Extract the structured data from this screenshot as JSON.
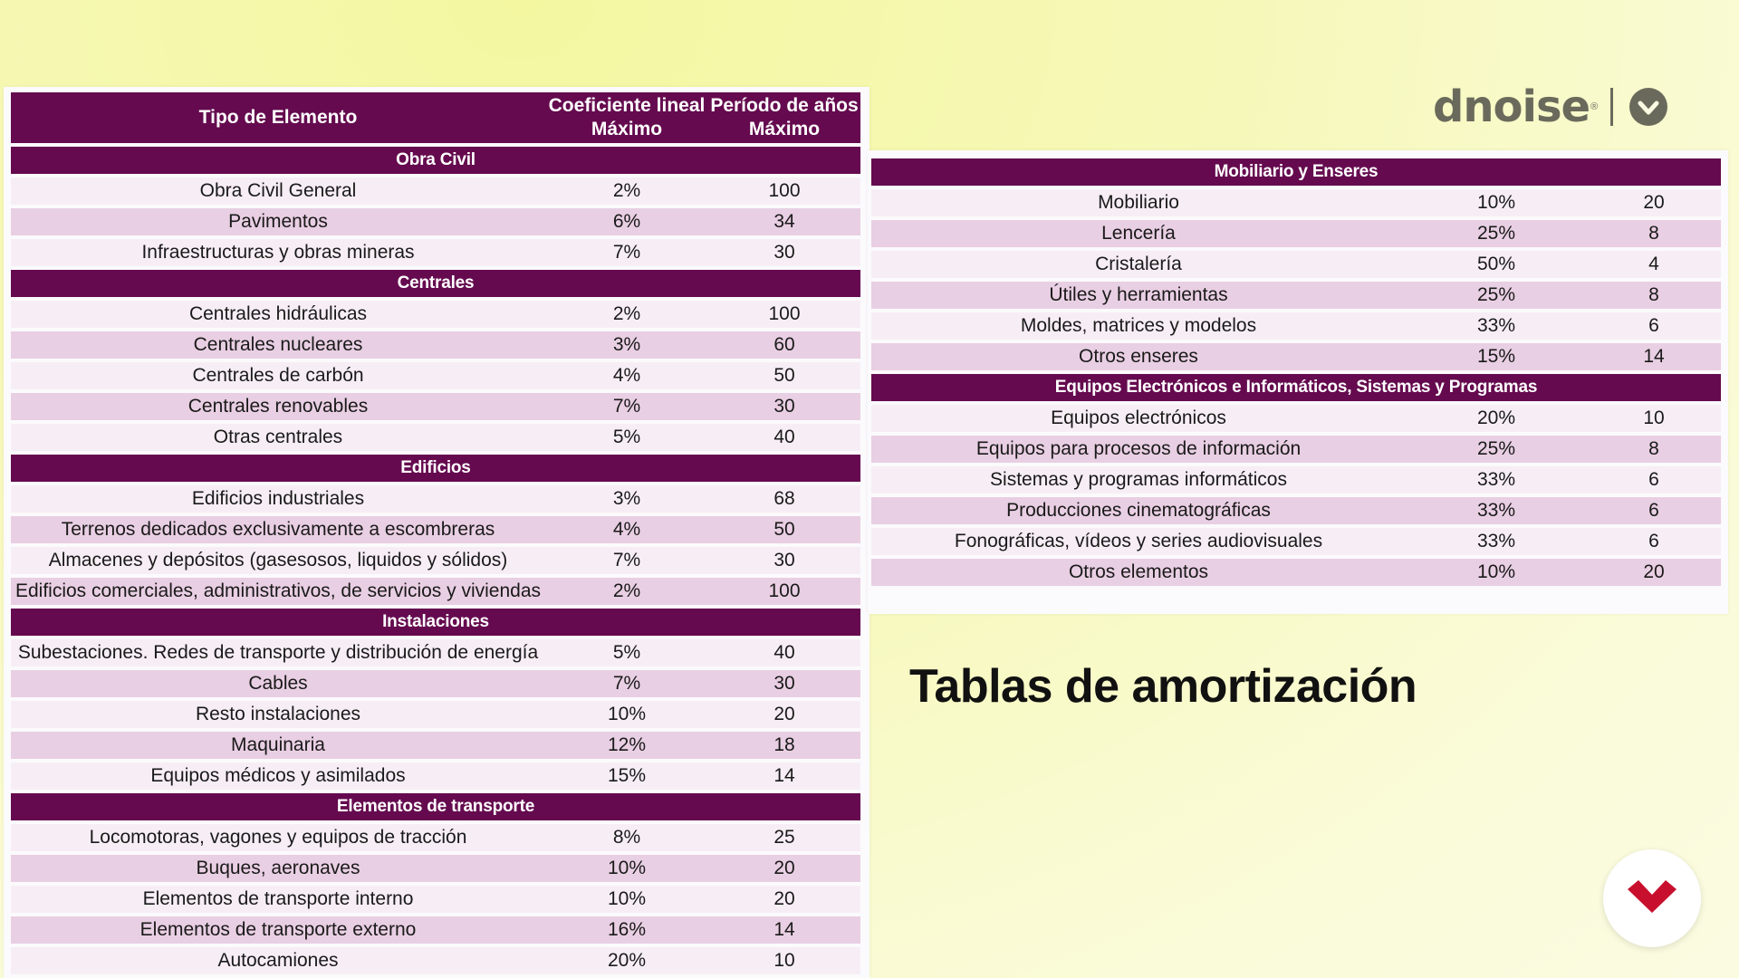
{
  "brand": {
    "name": "dnoise",
    "reg": "®"
  },
  "slide_title": "Tablas de amortización",
  "left_table": {
    "headers": [
      "Tipo de Elemento",
      "Coeficiente lineal Máximo",
      "Período de años Máximo"
    ],
    "sections": [
      {
        "title": "Obra Civil",
        "rows": [
          [
            "Obra Civil General",
            "2%",
            "100"
          ],
          [
            "Pavimentos",
            "6%",
            "34"
          ],
          [
            "Infraestructuras y obras mineras",
            "7%",
            "30"
          ]
        ]
      },
      {
        "title": "Centrales",
        "rows": [
          [
            "Centrales hidráulicas",
            "2%",
            "100"
          ],
          [
            "Centrales nucleares",
            "3%",
            "60"
          ],
          [
            "Centrales de carbón",
            "4%",
            "50"
          ],
          [
            "Centrales renovables",
            "7%",
            "30"
          ],
          [
            "Otras centrales",
            "5%",
            "40"
          ]
        ]
      },
      {
        "title": "Edificios",
        "rows": [
          [
            "Edificios industriales",
            "3%",
            "68"
          ],
          [
            "Terrenos dedicados exclusivamente a escombreras",
            "4%",
            "50"
          ],
          [
            "Almacenes y depósitos (gasesosos, liquidos y sólidos)",
            "7%",
            "30"
          ],
          [
            "Edificios comerciales, administrativos, de servicios y viviendas",
            "2%",
            "100"
          ]
        ]
      },
      {
        "title": "Instalaciones",
        "rows": [
          [
            "Subestaciones. Redes de transporte y distribución de energía",
            "5%",
            "40"
          ],
          [
            "Cables",
            "7%",
            "30"
          ],
          [
            "Resto instalaciones",
            "10%",
            "20"
          ],
          [
            "Maquinaria",
            "12%",
            "18"
          ],
          [
            "Equipos médicos y asimilados",
            "15%",
            "14"
          ]
        ]
      },
      {
        "title": "Elementos de transporte",
        "rows": [
          [
            "Locomotoras, vagones y equipos de tracción",
            "8%",
            "25"
          ],
          [
            "Buques, aeronaves",
            "10%",
            "20"
          ],
          [
            "Elementos de transporte interno",
            "10%",
            "20"
          ],
          [
            "Elementos de transporte externo",
            "16%",
            "14"
          ],
          [
            "Autocamiones",
            "20%",
            "10"
          ]
        ]
      }
    ]
  },
  "right_table": {
    "sections": [
      {
        "title": "Mobiliario y Enseres",
        "rows": [
          [
            "Mobiliario",
            "10%",
            "20"
          ],
          [
            "Lencería",
            "25%",
            "8"
          ],
          [
            "Cristalería",
            "50%",
            "4"
          ],
          [
            "Útiles y herramientas",
            "25%",
            "8"
          ],
          [
            "Moldes, matrices y modelos",
            "33%",
            "6"
          ],
          [
            "Otros enseres",
            "15%",
            "14"
          ]
        ]
      },
      {
        "title": "Equipos Electrónicos e Informáticos, Sistemas y Programas",
        "rows": [
          [
            "Equipos electrónicos",
            "20%",
            "10"
          ],
          [
            "Equipos para procesos de información",
            "25%",
            "8"
          ],
          [
            "Sistemas y programas informáticos",
            "33%",
            "6"
          ],
          [
            "Producciones cinematográficas",
            "33%",
            "6"
          ],
          [
            "Fonográficas, vídeos y series audiovisuales",
            "33%",
            "6"
          ],
          [
            "Otros elementos",
            "10%",
            "20"
          ]
        ]
      }
    ]
  },
  "colors": {
    "header": "#650a4f",
    "row_light": "#f7eef5",
    "row_dark": "#e9cfe3",
    "brand_gray": "#6a6a5c",
    "fab_red": "#c8102e"
  },
  "icons": {
    "brand_badge": "heart-check-icon",
    "fab": "chevron-down-logo-icon"
  }
}
